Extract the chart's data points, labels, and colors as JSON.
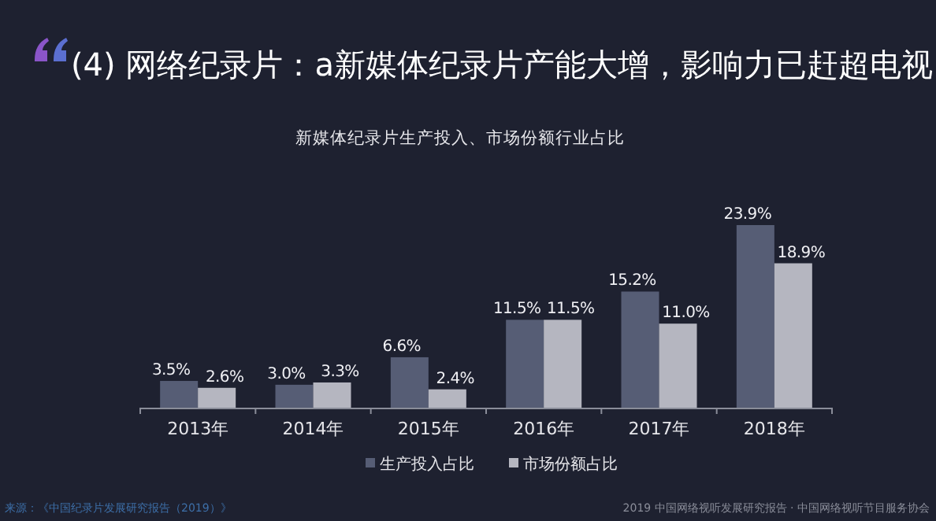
{
  "chart_data": {
    "type": "bar",
    "title": "(4) 网络纪录片：a新媒体纪录片产能大增，影响力已赶超电视",
    "subtitle": "新媒体纪录片生产投入、市场份额行业占比",
    "categories": [
      "2013年",
      "2014年",
      "2015年",
      "2016年",
      "2017年",
      "2018年"
    ],
    "series": [
      {
        "name": "生产投入占比",
        "color": "#565d75",
        "values": [
          3.5,
          3.0,
          6.6,
          11.5,
          15.2,
          23.9
        ],
        "value_labels": [
          "3.5%",
          "3.0%",
          "6.6%",
          "11.5%",
          "15.2%",
          "23.9%"
        ]
      },
      {
        "name": "市场份额占比",
        "color": "#b5b6c0",
        "values": [
          2.6,
          3.3,
          2.4,
          11.5,
          11.0,
          18.9
        ],
        "value_labels": [
          "2.6%",
          "3.3%",
          "2.4%",
          "11.5%",
          "11.0%",
          "18.9%"
        ]
      }
    ],
    "legend": "bottom",
    "annotations": [
      "来源：《中国纪录片发展研究报告（2019）》",
      "2019 中国网络视听发展研究报告 · 中国网络视听节目服务协会"
    ]
  }
}
